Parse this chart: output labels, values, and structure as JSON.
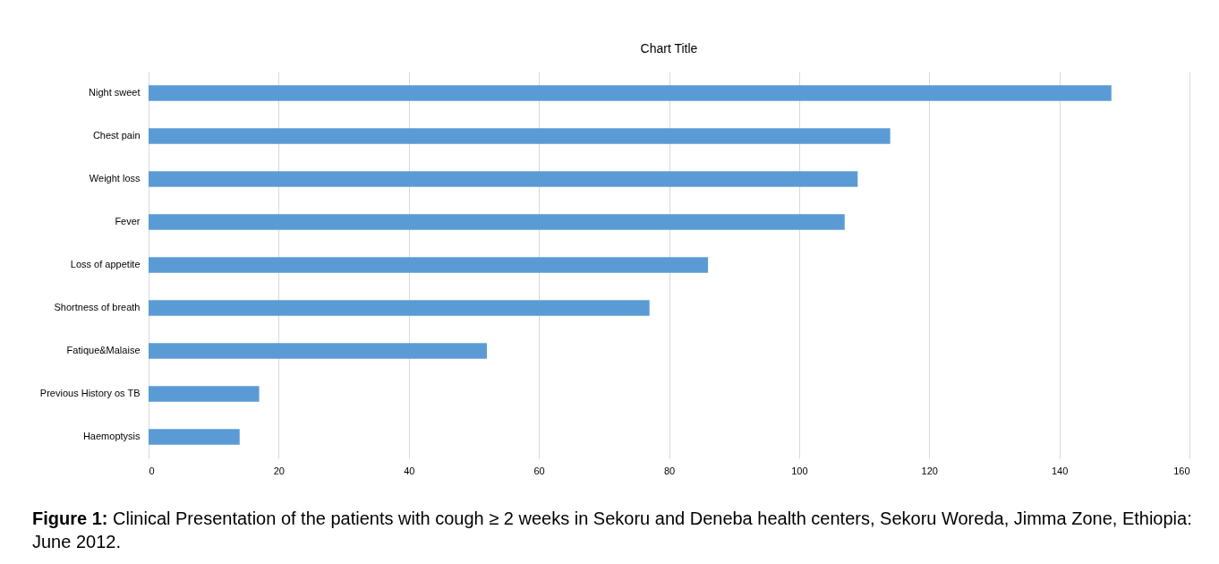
{
  "chart_data": {
    "type": "bar",
    "orientation": "horizontal",
    "title": "Chart Title",
    "categories": [
      "Night sweet",
      "Chest pain",
      "Weight loss",
      "Fever",
      "Loss of appetite",
      "Shortness of breath",
      "Fatique&Malaise",
      "Previous History os TB",
      "Haemoptysis"
    ],
    "values": [
      148,
      114,
      109,
      107,
      86,
      77,
      52,
      17,
      14
    ],
    "color": "#5b9bd5",
    "xlim": [
      0,
      160
    ],
    "xticks": [
      0,
      20,
      40,
      60,
      80,
      100,
      120,
      140,
      160
    ],
    "grid": "x",
    "annotations": [
      "Figure 1: Clinical Presentation of the patients with cough ≥ 2 weeks in Sekoru and Deneba health centers, Sekoru Woreda, Jimma Zone, Ethiopia: June 2012."
    ]
  }
}
